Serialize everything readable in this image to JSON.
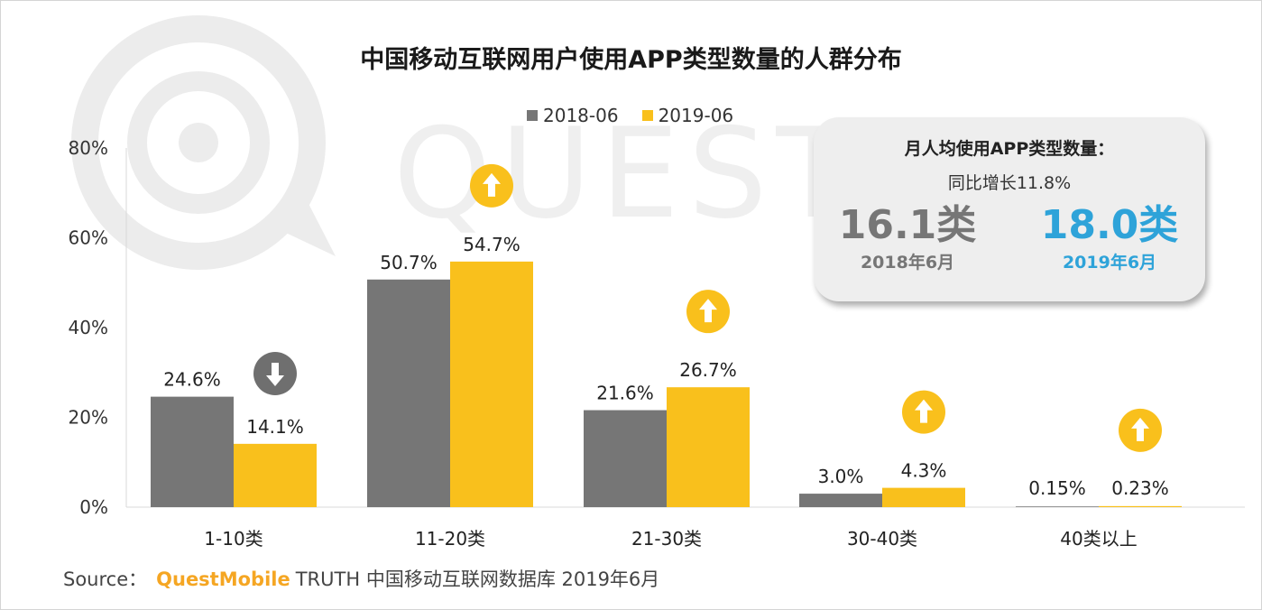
{
  "title": "中国移动互联网用户使用APP类型数量的人群分布",
  "colors": {
    "series_2018": "#767676",
    "series_2019": "#f9c01c",
    "accent_2019": "#2ea3d9",
    "arrow_down": "#6f6f6f",
    "arrow_up": "#f9c01c"
  },
  "watermark": {
    "text": "QUESTM"
  },
  "chart_data": {
    "type": "bar",
    "title": "中国移动互联网用户使用APP类型数量的人群分布",
    "categories": [
      "1-10类",
      "11-20类",
      "21-30类",
      "30-40类",
      "40类以上"
    ],
    "series": [
      {
        "name": "2018-06",
        "values": [
          24.6,
          50.7,
          21.6,
          3.0,
          0.15
        ],
        "labels": [
          "24.6%",
          "50.7%",
          "21.6%",
          "3.0%",
          "0.15%"
        ]
      },
      {
        "name": "2019-06",
        "values": [
          14.1,
          54.7,
          26.7,
          4.3,
          0.23
        ],
        "labels": [
          "14.1%",
          "54.7%",
          "26.7%",
          "4.3%",
          "0.23%"
        ]
      }
    ],
    "trend_icons": [
      "arrow-down",
      "arrow-up",
      "arrow-up",
      "arrow-up",
      "arrow-up"
    ],
    "ylim": [
      0,
      80
    ],
    "yticks": [
      0,
      20,
      40,
      60,
      80
    ],
    "ytick_labels": [
      "0%",
      "20%",
      "40%",
      "60%",
      "80%"
    ],
    "legend_position": "top-center",
    "grid": false
  },
  "stat_box": {
    "title": "月人均使用APP类型数量：",
    "growth": "同比增长11.8%",
    "left": {
      "value": "16.1类",
      "date": "2018年6月"
    },
    "right": {
      "value": "18.0类",
      "date": "2019年6月"
    }
  },
  "source": {
    "prefix": "Source：",
    "brand": "QuestMobile",
    "rest": "TRUTH 中国移动互联网数据库 2019年6月"
  }
}
